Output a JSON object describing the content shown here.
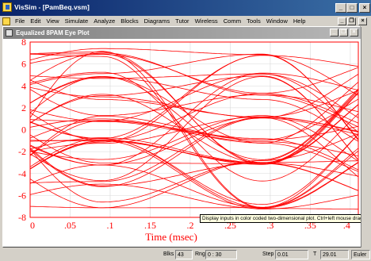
{
  "window": {
    "title": "VisSim - [PamBeq.vsm]",
    "minimize": "_",
    "maximize": "□",
    "close": "×"
  },
  "menu": {
    "items": [
      "File",
      "Edit",
      "View",
      "Simulate",
      "Analyze",
      "Blocks",
      "Diagrams",
      "Tutor",
      "Wireless",
      "Comm",
      "Tools",
      "Window",
      "Help"
    ],
    "doc_minimize": "_",
    "doc_restore": "❐",
    "doc_close": "×"
  },
  "plot_window": {
    "title": "Equalized 8PAM Eye Plot",
    "minimize": "_",
    "restore": "❐",
    "close": "×"
  },
  "tooltip": "Display inputs in color coded two-dimensional plot.  Ctrl+left mouse drag",
  "status": {
    "blks_label": "Blks",
    "blks": "43",
    "rng_label": "Rng",
    "rng": "0 : 30",
    "step_label": "Step",
    "step": "0.01",
    "t_label": "T",
    "t": "29.01",
    "method": "Euler"
  },
  "chart_data": {
    "type": "line",
    "xlabel": "Time (msec)",
    "x_ticks": [
      "0",
      ".05",
      ".1",
      ".15",
      ".2",
      ".25",
      ".3",
      ".35",
      ".4"
    ],
    "y_ticks": [
      "8",
      "6",
      "4",
      "2",
      "0",
      "-2",
      "-4",
      "-6",
      "-8"
    ],
    "xlim": [
      0,
      0.41
    ],
    "ylim": [
      -8,
      8
    ],
    "grid": true,
    "line_color": "#ff0000",
    "symbol_levels": [
      -7,
      -5,
      -3,
      -1,
      1,
      3,
      5,
      7
    ],
    "symbol_period_msec": 0.2,
    "eye_center_msec": [
      0.09,
      0.29
    ]
  }
}
